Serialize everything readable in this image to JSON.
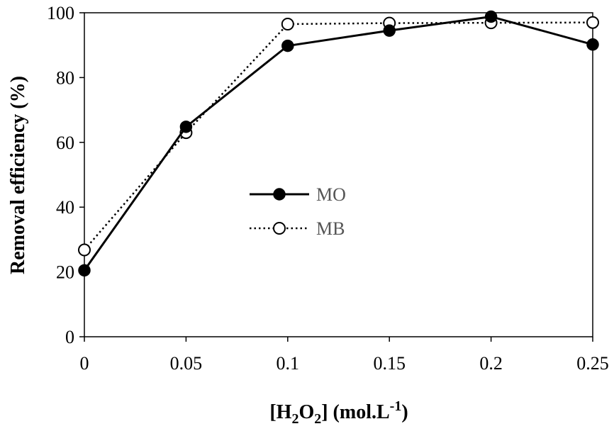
{
  "chart_data": {
    "type": "line",
    "x": [
      0,
      0.05,
      0.1,
      0.15,
      0.2,
      0.25
    ],
    "x_tick_labels": [
      "0",
      "0.05",
      "0.1",
      "0.15",
      "0.2",
      "0.25"
    ],
    "y_tick_labels": [
      "0",
      "20",
      "40",
      "60",
      "80",
      "100"
    ],
    "xlim": [
      0,
      0.25
    ],
    "ylim": [
      0,
      100
    ],
    "xlabel_parts": {
      "open": "[H",
      "sub1": "2",
      "mid": "O",
      "sub2": "2",
      "close": "] (mol.L",
      "sup": "-1",
      "end": ")"
    },
    "ylabel": "Removal efficiency (%)",
    "grid": false,
    "legend_position": "center",
    "series": [
      {
        "name": "MO",
        "marker": "filled-circle",
        "line_style": "solid",
        "color": "#000000",
        "values": [
          20.5,
          64.8,
          89.8,
          94.5,
          98.8,
          90.2
        ]
      },
      {
        "name": "MB",
        "marker": "open-circle",
        "line_style": "dotted",
        "color": "#000000",
        "values": [
          26.8,
          63.0,
          96.5,
          96.8,
          96.9,
          97.0
        ]
      }
    ]
  }
}
